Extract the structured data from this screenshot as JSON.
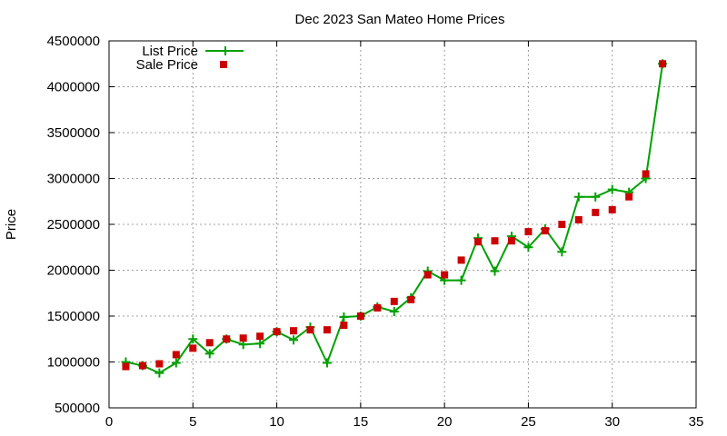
{
  "chart_data": {
    "type": "line",
    "title": "Dec 2023 San Mateo Home Prices",
    "xlabel": "",
    "ylabel": "Price",
    "xlim": [
      0,
      35
    ],
    "ylim": [
      500000,
      4500000
    ],
    "x_ticks": [
      0,
      5,
      10,
      15,
      20,
      25,
      30,
      35
    ],
    "y_ticks": [
      500000,
      1000000,
      1500000,
      2000000,
      2500000,
      3000000,
      3500000,
      4000000,
      4500000
    ],
    "grid": true,
    "legend_position": "top-left",
    "x": [
      1,
      2,
      3,
      4,
      5,
      6,
      7,
      8,
      9,
      10,
      11,
      12,
      13,
      14,
      15,
      16,
      17,
      18,
      19,
      20,
      21,
      22,
      23,
      24,
      25,
      26,
      27,
      28,
      29,
      30,
      31,
      32,
      33
    ],
    "series": [
      {
        "name": "List Price",
        "style": "line with plus markers",
        "color": "#00a000",
        "values": [
          1000000,
          960000,
          880000,
          990000,
          1250000,
          1090000,
          1250000,
          1190000,
          1200000,
          1330000,
          1240000,
          1380000,
          990000,
          1490000,
          1500000,
          1600000,
          1550000,
          1700000,
          1990000,
          1890000,
          1890000,
          2350000,
          1990000,
          2370000,
          2250000,
          2450000,
          2200000,
          2800000,
          2800000,
          2880000,
          2850000,
          3000000,
          4250000
        ]
      },
      {
        "name": "Sale Price",
        "style": "square markers",
        "color": "#cc0000",
        "values": [
          950000,
          960000,
          980000,
          1080000,
          1150000,
          1210000,
          1250000,
          1260000,
          1280000,
          1330000,
          1340000,
          1350000,
          1350000,
          1400000,
          1500000,
          1590000,
          1660000,
          1680000,
          1950000,
          1950000,
          2110000,
          2310000,
          2320000,
          2320000,
          2420000,
          2430000,
          2500000,
          2550000,
          2630000,
          2660000,
          2800000,
          3050000,
          4250000
        ]
      }
    ]
  }
}
